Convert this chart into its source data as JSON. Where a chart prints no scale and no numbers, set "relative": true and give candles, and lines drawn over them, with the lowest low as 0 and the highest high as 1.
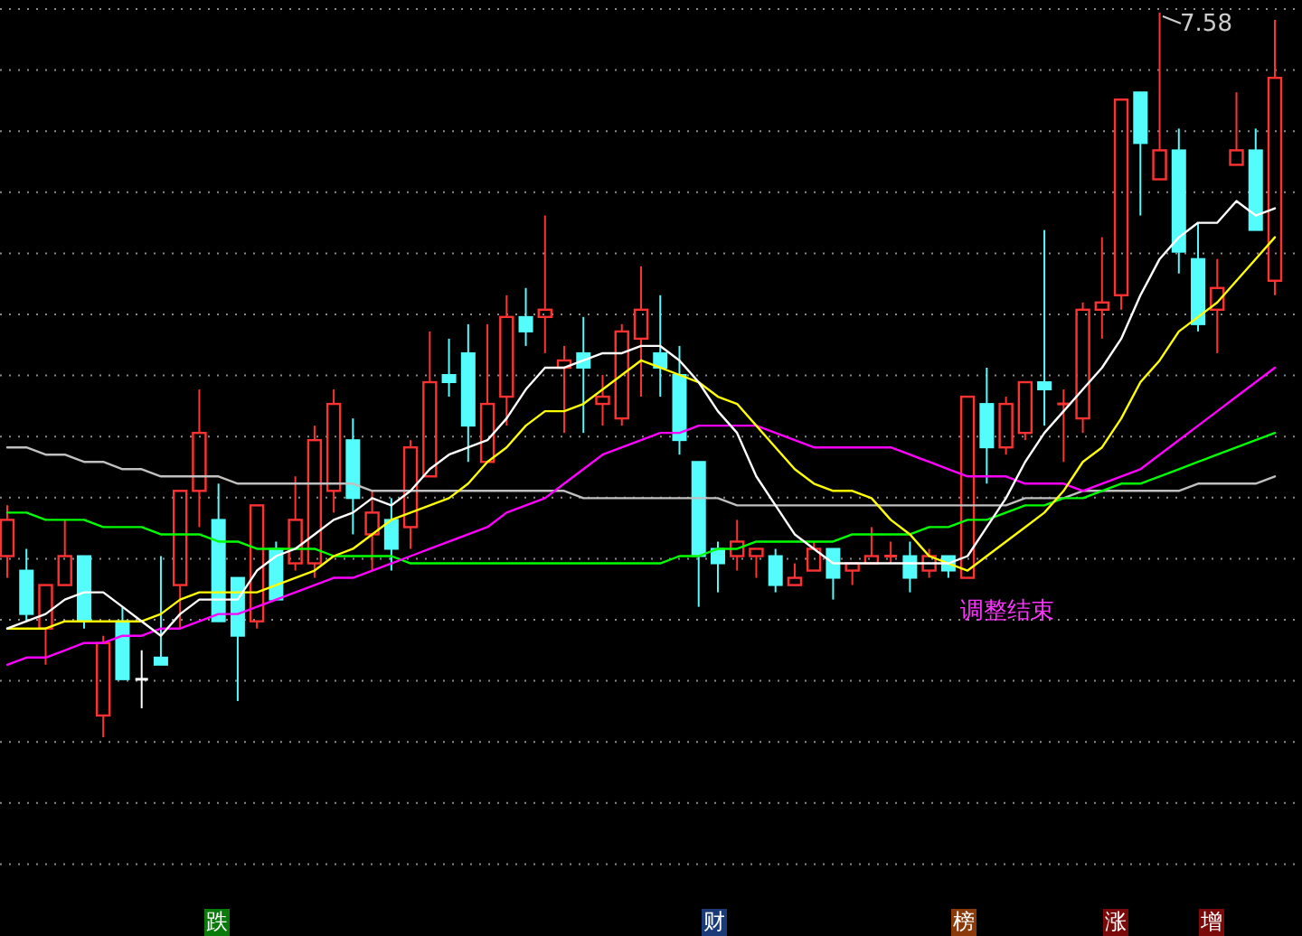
{
  "chart_data": {
    "type": "candlestick",
    "relative": true,
    "grid": "y",
    "categories": [
      null,
      null,
      null,
      null,
      null,
      null,
      null,
      null,
      null,
      null,
      null,
      null,
      null,
      null,
      null,
      null,
      null,
      null,
      null,
      null,
      null,
      null,
      null,
      null,
      null,
      null,
      null,
      null,
      null,
      null,
      null,
      null,
      null,
      null,
      null,
      null,
      null,
      null,
      null,
      null,
      null,
      null,
      null,
      null,
      null,
      null,
      null,
      null,
      null,
      null,
      null,
      null,
      null,
      null,
      null,
      null,
      null,
      null,
      null,
      null,
      null,
      null,
      null,
      null,
      null,
      null,
      null
    ],
    "ohlc": [
      [
        0.25,
        0.32,
        0.22,
        0.3
      ],
      [
        0.23,
        0.26,
        0.16,
        0.17
      ],
      [
        0.15,
        0.21,
        0.1,
        0.21
      ],
      [
        0.21,
        0.3,
        0.21,
        0.25
      ],
      [
        0.25,
        0.25,
        0.15,
        0.16
      ],
      [
        0.03,
        0.14,
        0,
        0.13
      ],
      [
        0.16,
        0.18,
        0.08,
        0.08
      ],
      [
        0.08,
        0.12,
        0.04,
        0.08
      ],
      [
        0.11,
        0.25,
        0.1,
        0.1
      ],
      [
        0.21,
        0.34,
        0.15,
        0.34
      ],
      [
        0.34,
        0.48,
        0.29,
        0.42
      ],
      [
        0.3,
        0.35,
        0.16,
        0.16
      ],
      [
        0.22,
        0.22,
        0.05,
        0.14
      ],
      [
        0.16,
        0.32,
        0.15,
        0.32
      ],
      [
        0.26,
        0.27,
        0.19,
        0.19
      ],
      [
        0.24,
        0.36,
        0.23,
        0.3
      ],
      [
        0.24,
        0.43,
        0.22,
        0.41
      ],
      [
        0.34,
        0.48,
        0.31,
        0.46
      ],
      [
        0.41,
        0.44,
        0.28,
        0.33
      ],
      [
        0.28,
        0.34,
        0.23,
        0.31
      ],
      [
        0.3,
        0.33,
        0.23,
        0.26
      ],
      [
        0.29,
        0.41,
        0.26,
        0.4
      ],
      [
        0.36,
        0.56,
        0.36,
        0.49
      ],
      [
        0.5,
        0.55,
        0.47,
        0.49
      ],
      [
        0.53,
        0.57,
        0.38,
        0.43
      ],
      [
        0.38,
        0.57,
        0.38,
        0.46
      ],
      [
        0.47,
        0.61,
        0.43,
        0.58
      ],
      [
        0.58,
        0.62,
        0.54,
        0.56
      ],
      [
        0.58,
        0.72,
        0.53,
        0.59
      ],
      [
        0.51,
        0.54,
        0.42,
        0.52
      ],
      [
        0.53,
        0.58,
        0.42,
        0.51
      ],
      [
        0.46,
        0.5,
        0.43,
        0.47
      ],
      [
        0.44,
        0.57,
        0.43,
        0.56
      ],
      [
        0.55,
        0.65,
        0.47,
        0.59
      ],
      [
        0.53,
        0.61,
        0.47,
        0.51
      ],
      [
        0.5,
        0.54,
        0.39,
        0.41
      ],
      [
        0.38,
        0.38,
        0.18,
        0.25
      ],
      [
        0.26,
        0.27,
        0.2,
        0.24
      ],
      [
        0.25,
        0.3,
        0.23,
        0.27
      ],
      [
        0.25,
        0.26,
        0.22,
        0.26
      ],
      [
        0.25,
        0.26,
        0.2,
        0.21
      ],
      [
        0.21,
        0.24,
        0.21,
        0.22
      ],
      [
        0.23,
        0.27,
        0.23,
        0.26
      ],
      [
        0.26,
        0.26,
        0.19,
        0.22
      ],
      [
        0.23,
        0.24,
        0.21,
        0.24
      ],
      [
        0.24,
        0.29,
        0.24,
        0.25
      ],
      [
        0.25,
        0.27,
        0.24,
        0.25
      ],
      [
        0.25,
        0.27,
        0.2,
        0.22
      ],
      [
        0.23,
        0.26,
        0.22,
        0.25
      ],
      [
        0.25,
        0.25,
        0.22,
        0.23
      ],
      [
        0.22,
        0.47,
        0.22,
        0.47
      ],
      [
        0.46,
        0.51,
        0.35,
        0.4
      ],
      [
        0.4,
        0.47,
        0.39,
        0.46
      ],
      [
        0.42,
        0.49,
        0.41,
        0.49
      ],
      [
        0.49,
        0.7,
        0.43,
        0.48
      ],
      [
        0.46,
        0.48,
        0.38,
        0.46
      ],
      [
        0.44,
        0.6,
        0.42,
        0.59
      ],
      [
        0.59,
        0.69,
        0.55,
        0.6
      ],
      [
        0.61,
        0.88,
        0.59,
        0.88
      ],
      [
        0.89,
        0.89,
        0.72,
        0.82
      ],
      [
        0.77,
        1.0,
        0.77,
        0.81
      ],
      [
        0.81,
        0.84,
        0.64,
        0.67
      ],
      [
        0.66,
        0.71,
        0.56,
        0.57
      ],
      [
        0.59,
        0.66,
        0.53,
        0.62
      ],
      [
        0.79,
        0.89,
        0.79,
        0.81
      ],
      [
        0.81,
        0.84,
        0.7,
        0.7
      ],
      [
        0.63,
        0.99,
        0.61,
        0.91
      ]
    ],
    "colors": [
      "#ff3232",
      "#54fcfc",
      "#ff3232",
      "#ff3232",
      "#54fcfc",
      "#ff3232",
      "#54fcfc",
      "#ffffff",
      "#54fcfc",
      "#ff3232",
      "#ff3232",
      "#54fcfc",
      "#54fcfc",
      "#ff3232",
      "#54fcfc",
      "#ff3232",
      "#ff3232",
      "#ff3232",
      "#54fcfc",
      "#ff3232",
      "#54fcfc",
      "#ff3232",
      "#ff3232",
      "#54fcfc",
      "#54fcfc",
      "#ff3232",
      "#ff3232",
      "#54fcfc",
      "#ff3232",
      "#ff3232",
      "#54fcfc",
      "#ff3232",
      "#ff3232",
      "#ff3232",
      "#54fcfc",
      "#54fcfc",
      "#54fcfc",
      "#54fcfc",
      "#ff3232",
      "#ff3232",
      "#54fcfc",
      "#ff3232",
      "#ff3232",
      "#54fcfc",
      "#ff3232",
      "#ff3232",
      "#ff3232",
      "#54fcfc",
      "#ff3232",
      "#54fcfc",
      "#ff3232",
      "#54fcfc",
      "#ff3232",
      "#ff3232",
      "#54fcfc",
      "#ff3232",
      "#ff3232",
      "#ff3232",
      "#ff3232",
      "#54fcfc",
      "#ff3232",
      "#54fcfc",
      "#54fcfc",
      "#ff3232",
      "#ff3232",
      "#54fcfc",
      "#ff3232"
    ],
    "series": [
      {
        "type": "line",
        "color": "#c0c0c0",
        "values": [
          0.4,
          0.4,
          0.39,
          0.39,
          0.38,
          0.38,
          0.37,
          0.37,
          0.36,
          0.36,
          0.36,
          0.36,
          0.35,
          0.35,
          0.35,
          0.35,
          0.35,
          0.35,
          0.35,
          0.34,
          0.34,
          0.34,
          0.34,
          0.34,
          0.34,
          0.34,
          0.34,
          0.34,
          0.34,
          0.34,
          0.33,
          0.33,
          0.33,
          0.33,
          0.33,
          0.33,
          0.33,
          0.33,
          0.32,
          0.32,
          0.32,
          0.32,
          0.32,
          0.32,
          0.32,
          0.32,
          0.32,
          0.32,
          0.32,
          0.32,
          0.32,
          0.32,
          0.32,
          0.33,
          0.33,
          0.33,
          0.34,
          0.34,
          0.34,
          0.34,
          0.34,
          0.34,
          0.35,
          0.35,
          0.35,
          0.35,
          0.36
        ]
      },
      {
        "type": "line",
        "color": "#00ff00",
        "values": [
          0.31,
          0.31,
          0.3,
          0.3,
          0.3,
          0.29,
          0.29,
          0.29,
          0.28,
          0.28,
          0.28,
          0.27,
          0.27,
          0.26,
          0.26,
          0.26,
          0.26,
          0.25,
          0.25,
          0.25,
          0.25,
          0.24,
          0.24,
          0.24,
          0.24,
          0.24,
          0.24,
          0.24,
          0.24,
          0.24,
          0.24,
          0.24,
          0.24,
          0.24,
          0.24,
          0.25,
          0.25,
          0.26,
          0.26,
          0.27,
          0.27,
          0.27,
          0.27,
          0.27,
          0.28,
          0.28,
          0.28,
          0.28,
          0.29,
          0.29,
          0.3,
          0.3,
          0.31,
          0.32,
          0.32,
          0.33,
          0.33,
          0.34,
          0.35,
          0.35,
          0.36,
          0.37,
          0.38,
          0.39,
          0.4,
          0.41,
          0.42
        ]
      },
      {
        "type": "line",
        "color": "#ff00ff",
        "values": [
          0.1,
          0.11,
          0.11,
          0.12,
          0.13,
          0.13,
          0.14,
          0.14,
          0.15,
          0.15,
          0.16,
          0.17,
          0.17,
          0.18,
          0.19,
          0.2,
          0.21,
          0.22,
          0.22,
          0.23,
          0.24,
          0.25,
          0.26,
          0.27,
          0.28,
          0.29,
          0.31,
          0.32,
          0.33,
          0.35,
          0.37,
          0.39,
          0.4,
          0.41,
          0.42,
          0.42,
          0.43,
          0.43,
          0.43,
          0.43,
          0.42,
          0.41,
          0.4,
          0.4,
          0.4,
          0.4,
          0.4,
          0.39,
          0.38,
          0.37,
          0.36,
          0.36,
          0.36,
          0.35,
          0.35,
          0.35,
          0.34,
          0.35,
          0.36,
          0.37,
          0.39,
          0.41,
          0.43,
          0.45,
          0.47,
          0.49,
          0.51
        ]
      },
      {
        "type": "line",
        "color": "#ffff00",
        "values": [
          0.15,
          0.15,
          0.15,
          0.16,
          0.16,
          0.16,
          0.16,
          0.16,
          0.17,
          0.19,
          0.2,
          0.2,
          0.2,
          0.2,
          0.21,
          0.22,
          0.23,
          0.25,
          0.26,
          0.28,
          0.3,
          0.31,
          0.32,
          0.33,
          0.35,
          0.38,
          0.4,
          0.43,
          0.45,
          0.45,
          0.46,
          0.48,
          0.5,
          0.52,
          0.51,
          0.5,
          0.49,
          0.47,
          0.46,
          0.43,
          0.4,
          0.37,
          0.35,
          0.34,
          0.34,
          0.33,
          0.3,
          0.28,
          0.25,
          0.24,
          0.23,
          0.25,
          0.27,
          0.29,
          0.31,
          0.34,
          0.38,
          0.4,
          0.44,
          0.49,
          0.52,
          0.56,
          0.58,
          0.6,
          0.63,
          0.66,
          0.69
        ]
      },
      {
        "type": "line",
        "color": "#ffffff",
        "values": [
          0.15,
          0.16,
          0.17,
          0.19,
          0.2,
          0.2,
          0.18,
          0.16,
          0.14,
          0.17,
          0.19,
          0.19,
          0.19,
          0.23,
          0.25,
          0.26,
          0.28,
          0.3,
          0.31,
          0.33,
          0.32,
          0.34,
          0.37,
          0.39,
          0.4,
          0.41,
          0.44,
          0.48,
          0.51,
          0.51,
          0.52,
          0.53,
          0.53,
          0.54,
          0.54,
          0.52,
          0.49,
          0.45,
          0.42,
          0.36,
          0.32,
          0.28,
          0.26,
          0.24,
          0.24,
          0.24,
          0.24,
          0.24,
          0.24,
          0.24,
          0.25,
          0.29,
          0.33,
          0.38,
          0.42,
          0.45,
          0.48,
          0.51,
          0.55,
          0.61,
          0.66,
          0.69,
          0.71,
          0.71,
          0.74,
          0.72,
          0.73
        ]
      }
    ],
    "annotations": [
      "7.58",
      "调整结束",
      "跌",
      "财",
      "榜",
      "涨",
      "增"
    ]
  }
}
